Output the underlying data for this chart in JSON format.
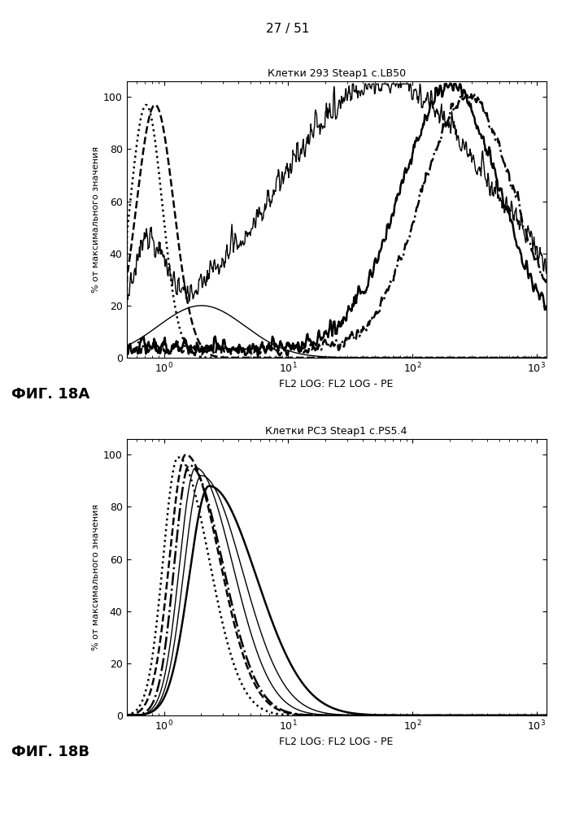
{
  "page_label": "27 / 51",
  "fig_label_A": "ФИГ. 18A",
  "fig_label_B": "ФИГ. 18B",
  "title_A": "Клетки 293 Steap1 с.LB50",
  "title_B": "Клетки PC3 Steap1 с.PS5.4",
  "xlabel": "FL2 LOG: FL2 LOG - PE",
  "ylabel": "% от максимального значения",
  "xlim": [
    0.5,
    1200
  ],
  "ylim": [
    0,
    106
  ],
  "yticks": [
    0,
    20,
    40,
    60,
    80,
    100
  ],
  "bg_color": "#ffffff",
  "line_color": "#000000"
}
